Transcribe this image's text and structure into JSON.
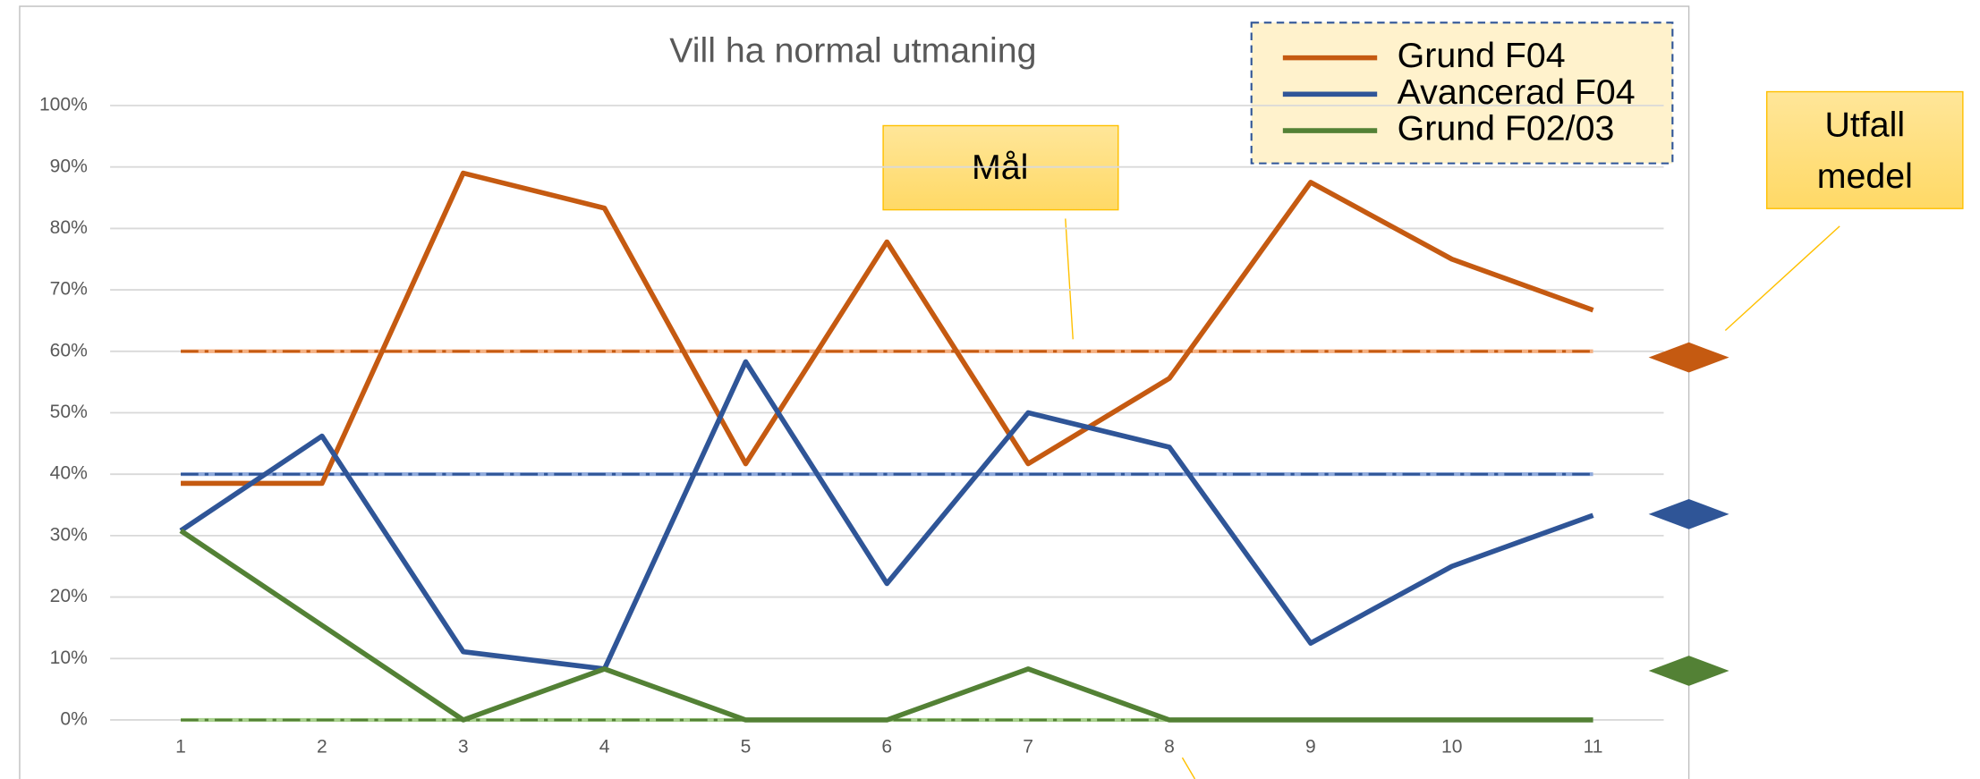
{
  "chart_data": {
    "type": "line",
    "title": "Vill ha normal utmaning",
    "x": [
      1,
      2,
      3,
      4,
      5,
      6,
      7,
      8,
      9,
      10,
      11
    ],
    "xlim": [
      0.5,
      11.5
    ],
    "xticks": [
      1,
      2,
      3,
      4,
      5,
      6,
      7,
      8,
      9,
      10,
      11
    ],
    "ylim": [
      0,
      100
    ],
    "yticks": [
      {
        "value": 0,
        "label": "0%"
      },
      {
        "value": 10,
        "label": "10%"
      },
      {
        "value": 20,
        "label": "20%"
      },
      {
        "value": 30,
        "label": "30%"
      },
      {
        "value": 40,
        "label": "40%"
      },
      {
        "value": 50,
        "label": "50%"
      },
      {
        "value": 60,
        "label": "60%"
      },
      {
        "value": 70,
        "label": "70%"
      },
      {
        "value": 80,
        "label": "80%"
      },
      {
        "value": 90,
        "label": "90%"
      },
      {
        "value": 100,
        "label": "100%"
      }
    ],
    "grid": true,
    "legend": "top-right",
    "series": [
      {
        "name": "Grund F04",
        "color": "#c55a11",
        "target_color": "#f4b183",
        "target": 60,
        "mean": 59,
        "values": [
          38.5,
          38.5,
          89,
          83.3,
          41.7,
          77.8,
          41.7,
          55.6,
          87.5,
          75,
          66.7
        ]
      },
      {
        "name": "Avancerad F04",
        "color": "#2f5597",
        "target_color": "#8faadc",
        "target": 40,
        "mean": 33.5,
        "values": [
          30.8,
          46.2,
          11.1,
          8.3,
          58.3,
          22.2,
          50,
          44.4,
          12.5,
          25,
          33.3
        ]
      },
      {
        "name": "Grund F02/03",
        "color": "#538135",
        "target_color": "#a9d18e",
        "target": 0,
        "mean": 8,
        "values": [
          30.8,
          15.4,
          0,
          8.3,
          0,
          0,
          8.3,
          0,
          0,
          0,
          0
        ]
      }
    ],
    "annotations": [
      "Mål",
      [
        "Utfall",
        "medel"
      ]
    ]
  }
}
